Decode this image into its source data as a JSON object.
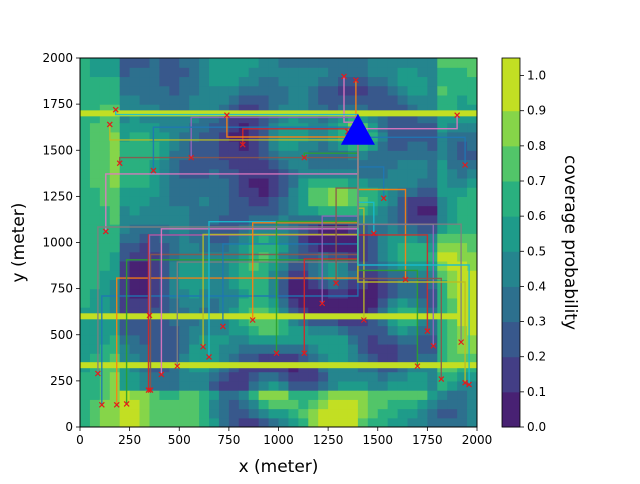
{
  "chart_data": {
    "type": "heatmap",
    "title": "",
    "xlabel": "x (meter)",
    "ylabel": "y (meter)",
    "xlim": [
      0,
      2000
    ],
    "ylim": [
      0,
      2000
    ],
    "xticks": [
      0,
      250,
      500,
      750,
      1000,
      1250,
      1500,
      1750,
      2000
    ],
    "yticks": [
      0,
      250,
      500,
      750,
      1000,
      1250,
      1500,
      1750,
      2000
    ],
    "colorbar": {
      "label": "coverage probability",
      "levels": [
        0.0,
        0.1,
        0.2,
        0.3,
        0.4,
        0.5,
        0.6,
        0.7,
        0.8,
        0.9,
        1.0
      ],
      "tick_labels": [
        "0.0",
        "0.1",
        "0.2",
        "0.3",
        "0.4",
        "0.5",
        "0.6",
        "0.7",
        "0.8",
        "0.9",
        "1.0"
      ],
      "colors": [
        "#482173",
        "#433e85",
        "#38588c",
        "#2d708e",
        "#25858e",
        "#1e9b8a",
        "#2ab07f",
        "#52c569",
        "#86d549",
        "#c2df23"
      ]
    },
    "high_coverage_strips_y": [
      1700,
      600,
      335
    ],
    "base_station": {
      "x": 1400,
      "y": 1600,
      "color": "#0000ff",
      "marker": "triangle"
    },
    "trajectory_colors": [
      "#1f77b4",
      "#ff7f0e",
      "#2ca02c",
      "#d62728",
      "#9467bd",
      "#8c564b",
      "#e377c2",
      "#7f7f7f",
      "#bcbd22",
      "#17becf"
    ],
    "endpoints": [
      [
        110,
        120
      ],
      [
        185,
        120
      ],
      [
        235,
        125
      ],
      [
        345,
        200
      ],
      [
        350,
        605
      ],
      [
        355,
        200
      ],
      [
        410,
        285
      ],
      [
        490,
        330
      ],
      [
        620,
        435
      ],
      [
        650,
        380
      ],
      [
        720,
        545
      ],
      [
        870,
        580
      ],
      [
        990,
        400
      ],
      [
        1130,
        400
      ],
      [
        1220,
        670
      ],
      [
        1290,
        780
      ],
      [
        1330,
        1900
      ],
      [
        1350,
        1600
      ],
      [
        1430,
        580
      ],
      [
        1480,
        1050
      ],
      [
        1530,
        1240
      ],
      [
        1640,
        800
      ],
      [
        1700,
        330
      ],
      [
        1750,
        520
      ],
      [
        1780,
        440
      ],
      [
        1820,
        260
      ],
      [
        1900,
        1690
      ],
      [
        1920,
        460
      ],
      [
        1940,
        240
      ],
      [
        1960,
        230
      ],
      [
        1940,
        1420
      ],
      [
        1390,
        1880
      ],
      [
        1130,
        1460
      ],
      [
        820,
        1530
      ],
      [
        560,
        1460
      ],
      [
        200,
        1430
      ],
      [
        130,
        1060
      ],
      [
        90,
        290
      ],
      [
        150,
        1640
      ],
      [
        180,
        1720
      ],
      [
        370,
        1390
      ],
      [
        740,
        1690
      ]
    ]
  }
}
